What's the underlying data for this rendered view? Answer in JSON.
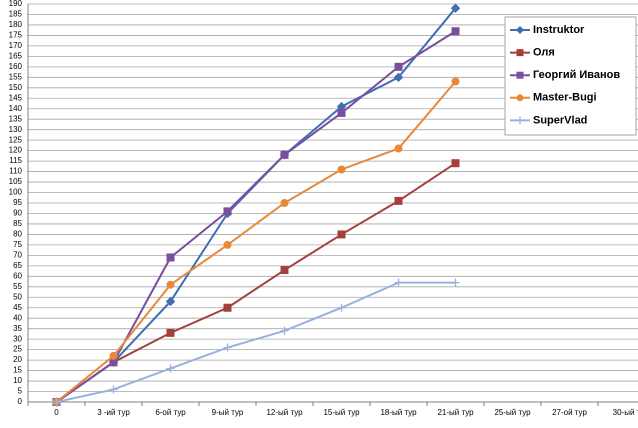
{
  "chart_data": {
    "type": "line",
    "categories": [
      "0",
      "3 -ий тур",
      "6-ой тур",
      "9-ый тур",
      "12-ый тур",
      "15-ый тур",
      "18-ый тур",
      "21-ый тур",
      "25-ый тур",
      "27-ой тур",
      "30-ый т"
    ],
    "series": [
      {
        "name": "Instruktor",
        "color": "#3f6fb0",
        "marker": "diamond",
        "values": [
          0,
          19,
          48,
          90,
          118,
          141,
          155,
          188,
          null,
          null,
          null
        ]
      },
      {
        "name": "Оля",
        "color": "#a4403c",
        "marker": "square",
        "values": [
          0,
          19,
          33,
          45,
          63,
          80,
          96,
          114,
          null,
          null,
          null
        ]
      },
      {
        "name": "Георгий Иванов",
        "color": "#7a4f9f",
        "marker": "square",
        "values": [
          0,
          19,
          69,
          91,
          118,
          138,
          160,
          177,
          null,
          null,
          null
        ]
      },
      {
        "name": "Master-Bugi",
        "color": "#e8883a",
        "marker": "circle",
        "values": [
          0,
          22,
          56,
          75,
          95,
          111,
          121,
          153,
          null,
          null,
          null
        ]
      },
      {
        "name": "SuperVlad",
        "color": "#98b2dc",
        "marker": "plus",
        "values": [
          0,
          6,
          16,
          26,
          34,
          45,
          57,
          57,
          null,
          null,
          null
        ]
      }
    ],
    "ylim": [
      0,
      190
    ],
    "yticks": [
      0,
      5,
      10,
      15,
      20,
      25,
      30,
      35,
      40,
      45,
      50,
      55,
      60,
      65,
      70,
      75,
      80,
      85,
      90,
      95,
      100,
      105,
      110,
      115,
      120,
      125,
      130,
      135,
      140,
      145,
      150,
      155,
      160,
      165,
      170,
      175,
      180,
      185,
      190
    ],
    "grid": true,
    "legend": "right"
  }
}
